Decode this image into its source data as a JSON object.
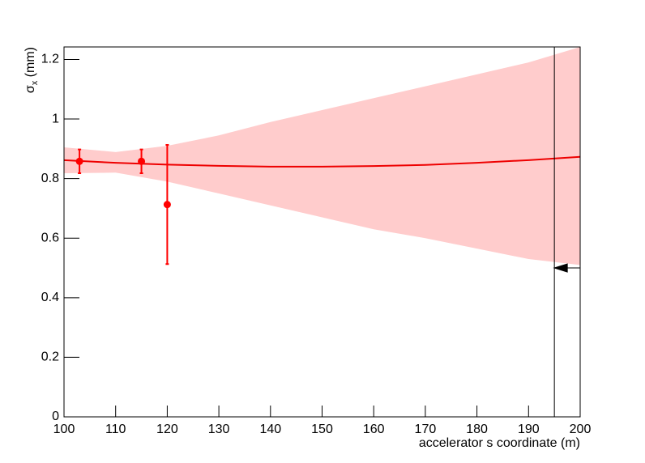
{
  "chart_data": {
    "type": "line",
    "xlabel": "accelerator s coordinate (m)",
    "ylabel": [
      "σ",
      "x",
      " (mm)"
    ],
    "xlim": [
      100,
      200
    ],
    "ylim": [
      0,
      1.242
    ],
    "xticks": [
      100,
      110,
      120,
      130,
      140,
      150,
      160,
      170,
      180,
      190,
      200
    ],
    "yticks": [
      0,
      0.2,
      0.4,
      0.6,
      0.8,
      1,
      1.2
    ],
    "band": {
      "color": "#ffcccc",
      "x": [
        100,
        110,
        120,
        130,
        140,
        150,
        160,
        170,
        180,
        190,
        200
      ],
      "upper": [
        0.905,
        0.889,
        0.91,
        0.945,
        0.99,
        1.03,
        1.07,
        1.11,
        1.15,
        1.19,
        1.242
      ],
      "lower": [
        0.818,
        0.82,
        0.79,
        0.75,
        0.71,
        0.67,
        0.63,
        0.6,
        0.565,
        0.53,
        0.51
      ]
    },
    "fit": {
      "color": "#ee0000",
      "x": [
        100,
        110,
        120,
        130,
        140,
        150,
        160,
        170,
        180,
        190,
        200
      ],
      "values": [
        0.862,
        0.853,
        0.847,
        0.843,
        0.84,
        0.84,
        0.842,
        0.846,
        0.853,
        0.862,
        0.873
      ]
    },
    "points": {
      "color": "#ff0000",
      "x": [
        103,
        115,
        120
      ],
      "values": [
        0.858,
        0.858,
        0.713
      ],
      "errors": [
        0.04,
        0.04,
        0.2
      ]
    },
    "vline": 195,
    "arrow": {
      "y": 0.5,
      "x": [
        200,
        195
      ]
    }
  }
}
